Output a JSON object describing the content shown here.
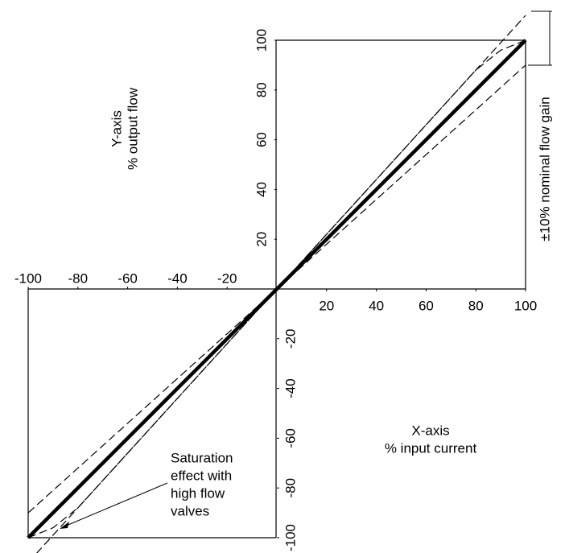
{
  "chart_data": {
    "type": "line",
    "y_label": [
      "Y-axis",
      "% output flow"
    ],
    "x_label": [
      "X-axis",
      "% input current"
    ],
    "annotations": {
      "gain": "±10% nominal flow gain",
      "saturation": [
        "Saturation",
        "effect with",
        "high flow",
        "valves"
      ]
    },
    "xlim": [
      -100,
      100
    ],
    "ylim": [
      -100,
      100
    ],
    "xticks": [
      -100,
      -80,
      -60,
      -40,
      -20,
      20,
      40,
      60,
      80,
      100
    ],
    "yticks": [
      -100,
      -80,
      -60,
      -40,
      -20,
      20,
      40,
      60,
      80,
      100
    ],
    "grid": false,
    "series": [
      {
        "color": "#000000",
        "style": "solid",
        "x": [
          -100,
          100
        ],
        "values": [
          -100,
          100
        ]
      },
      {
        "color": "#000000",
        "style": "dashed",
        "x": [
          -100,
          100
        ],
        "values": [
          -110,
          110
        ]
      },
      {
        "color": "#000000",
        "style": "dashed",
        "x": [
          -100,
          100
        ],
        "values": [
          -90,
          90
        ]
      },
      {
        "color": "#000000",
        "style": "dashed",
        "x": [
          -100,
          -90,
          -80,
          -60,
          -40,
          -20,
          0,
          20,
          40,
          60,
          80,
          90,
          100
        ],
        "values": [
          -100,
          -96,
          -88,
          -66,
          -44,
          -22,
          0,
          22,
          44,
          66,
          88,
          96,
          100
        ]
      }
    ]
  }
}
